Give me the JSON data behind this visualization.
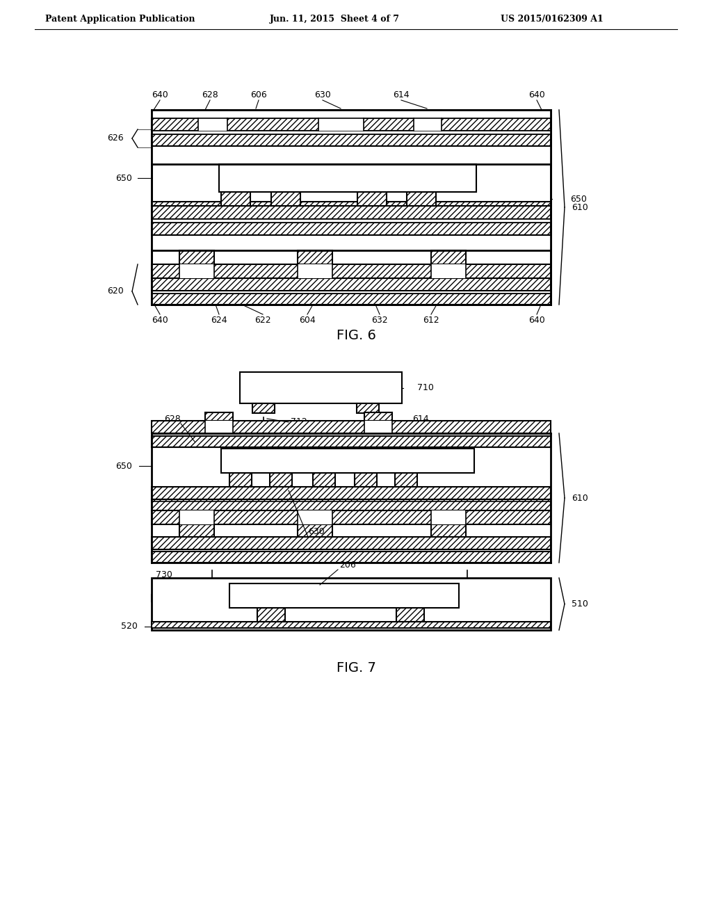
{
  "header_left": "Patent Application Publication",
  "header_center": "Jun. 11, 2015  Sheet 4 of 7",
  "header_right": "US 2015/0162309 A1",
  "fig6_label": "FIG. 6",
  "fig7_label": "FIG. 7",
  "bg_color": "#ffffff"
}
